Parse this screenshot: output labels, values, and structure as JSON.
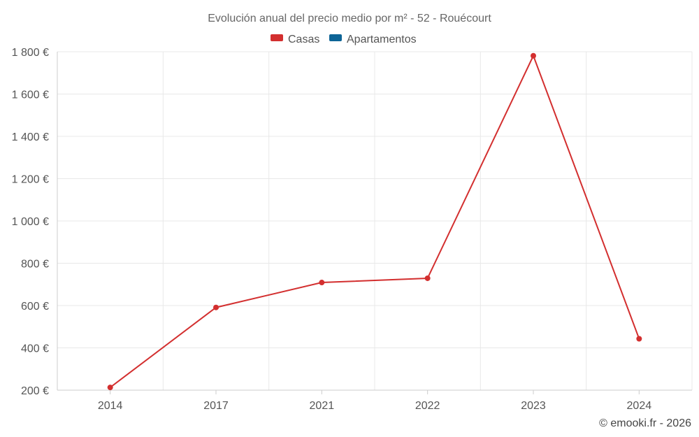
{
  "chart_data": {
    "type": "line",
    "title": "Evolución anual del precio medio por m² - 52 - Rouécourt",
    "categories": [
      "2014",
      "2017",
      "2021",
      "2022",
      "2023",
      "2024"
    ],
    "series": [
      {
        "name": "Casas",
        "color": "#d32f2f",
        "values": [
          213,
          591,
          709,
          729,
          1781,
          443
        ]
      },
      {
        "name": "Apartamentos",
        "color": "#0d6496",
        "values": [
          null,
          null,
          null,
          null,
          null,
          null
        ]
      }
    ],
    "ylim": [
      200,
      1800
    ],
    "yticks": [
      200,
      400,
      600,
      800,
      1000,
      1200,
      1400,
      1600,
      1800
    ],
    "ytick_labels": [
      "200 €",
      "400 €",
      "600 €",
      "800 €",
      "1 000 €",
      "1 200 €",
      "1 400 €",
      "1 600 €",
      "1 800 €"
    ],
    "xlabel": "",
    "ylabel": "",
    "grid": true,
    "legend_position": "top-center"
  },
  "credit": "© emooki.fr - 2026"
}
